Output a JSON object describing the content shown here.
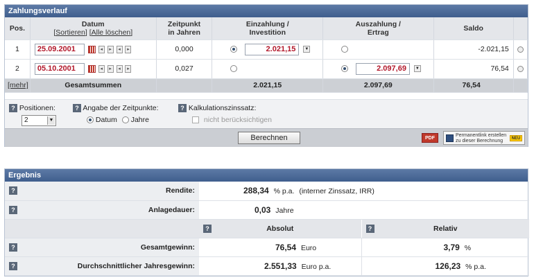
{
  "zahlungsverlauf": {
    "title": "Zahlungsverlauf",
    "headers": {
      "pos": "Pos.",
      "datum": "Datum",
      "sortieren": "[Sortieren]",
      "alle_loeschen": "[Alle löschen]",
      "zeitpunkt_line1": "Zeitpunkt",
      "zeitpunkt_line2": "in Jahren",
      "einzahlung_line1": "Einzahlung /",
      "einzahlung_line2": "Investition",
      "auszahlung_line1": "Auszahlung /",
      "auszahlung_line2": "Ertrag",
      "saldo": "Saldo"
    },
    "rows": [
      {
        "pos": "1",
        "date": "25.09.2001",
        "zeitpunkt": "0,000",
        "einzahlung": "2.021,15",
        "auszahlung": "",
        "selected": "einzahlung",
        "saldo": "-2.021,15"
      },
      {
        "pos": "2",
        "date": "05.10.2001",
        "zeitpunkt": "0,027",
        "einzahlung": "",
        "auszahlung": "2.097,69",
        "selected": "auszahlung",
        "saldo": "76,54"
      }
    ],
    "summary": {
      "mehr": "[mehr]",
      "label": "Gesamtsummen",
      "einzahlung": "2.021,15",
      "auszahlung": "2.097,69",
      "saldo": "76,54"
    },
    "options": {
      "positionen_label": "Positionen:",
      "positionen_value": "2",
      "zeitpunkte_label": "Angabe der Zeitpunkte:",
      "datum_option": "Datum",
      "jahre_option": "Jahre",
      "zins_label": "Kalkulationszinssatz:",
      "zins_checkbox": "nicht berücksichtigen"
    },
    "buttons": {
      "berechnen": "Berechnen",
      "pdf": "PDF",
      "permalink_line1": "Permanentlink erstellen",
      "permalink_line2": "zu dieser Berechnung",
      "neu": "NEU"
    }
  },
  "ergebnis": {
    "title": "Ergebnis",
    "rendite_label": "Rendite:",
    "rendite_value": "288,34",
    "rendite_unit": "% p.a.",
    "rendite_note": "(interner Zinssatz, IRR)",
    "anlagedauer_label": "Anlagedauer:",
    "anlagedauer_value": "0,03",
    "anlagedauer_unit": "Jahre",
    "absolut_header": "Absolut",
    "relativ_header": "Relativ",
    "gesamtgewinn_label": "Gesamtgewinn:",
    "gesamtgewinn_abs": "76,54",
    "gesamtgewinn_abs_unit": "Euro",
    "gesamtgewinn_rel": "3,79",
    "gesamtgewinn_rel_unit": "%",
    "jahresgewinn_label": "Durchschnittlicher Jahresgewinn:",
    "jahresgewinn_abs": "2.551,33",
    "jahresgewinn_abs_unit": "Euro p.a.",
    "jahresgewinn_rel": "126,23",
    "jahresgewinn_rel_unit": "% p.a."
  },
  "help_icon": "?"
}
